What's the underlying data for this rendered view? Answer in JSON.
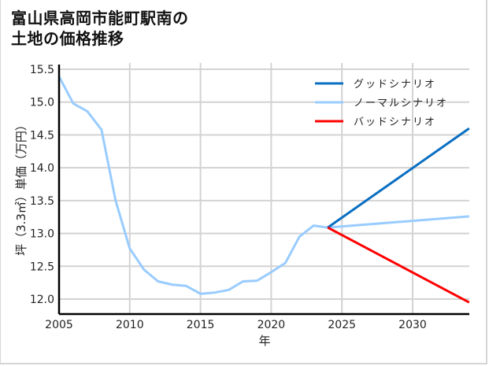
{
  "title": {
    "line1": "富山県高岡市能町駅南の",
    "line2": "土地の価格推移"
  },
  "colors": {
    "good": "#0a6fc2",
    "normal": "#99ccff",
    "bad": "#ff0000",
    "grid": "#d3d3d3",
    "axis": "#000000"
  },
  "chart_data": {
    "type": "line",
    "title": "富山県高岡市能町駅南の土地の価格推移",
    "xlabel": "年",
    "ylabel": "坪（3.3㎡）単価（万円）",
    "xlim": [
      2005,
      2034
    ],
    "ylim": [
      11.75,
      15.55
    ],
    "grid": true,
    "legend_position": "upper right",
    "x_ticks": [
      "2005",
      "2010",
      "2015",
      "2020",
      "2025",
      "2030"
    ],
    "y_ticks": [
      "12.0",
      "12.5",
      "13.0",
      "13.5",
      "14.0",
      "14.5",
      "15.0",
      "15.5"
    ],
    "series": [
      {
        "name": "ノーマルシナリオ",
        "color": "#99ccff",
        "x": [
          2005,
          2006,
          2007,
          2008,
          2009,
          2010,
          2011,
          2012,
          2013,
          2014,
          2015,
          2016,
          2017,
          2018,
          2019,
          2020,
          2021,
          2022,
          2023,
          2024,
          2034
        ],
        "values": [
          15.39,
          14.98,
          14.86,
          14.58,
          13.5,
          12.77,
          12.45,
          12.27,
          12.22,
          12.2,
          12.08,
          12.1,
          12.14,
          12.27,
          12.28,
          12.41,
          12.55,
          12.95,
          13.12,
          13.09,
          13.26
        ]
      },
      {
        "name": "グッドシナリオ",
        "color": "#0a6fc2",
        "x": [
          2024,
          2034
        ],
        "values": [
          13.09,
          14.6
        ]
      },
      {
        "name": "バッドシナリオ",
        "color": "#ff0000",
        "x": [
          2024,
          2034
        ],
        "values": [
          13.09,
          11.95
        ]
      }
    ],
    "legend": [
      "グッドシナリオ",
      "ノーマルシナリオ",
      "バッドシナリオ"
    ]
  }
}
